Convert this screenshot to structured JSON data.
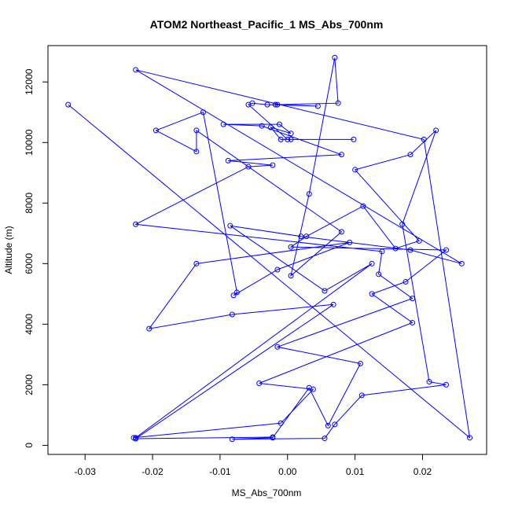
{
  "chart_data": {
    "type": "scatter",
    "title": "ATOM2 Northeast_Pacific_1 MS_Abs_700nm",
    "xlabel": "MS_Abs_700nm",
    "ylabel": "Altitude (m)",
    "xlim": [
      -0.0355,
      0.0295
    ],
    "ylim": [
      -300,
      13200
    ],
    "xticks": [
      -0.03,
      -0.02,
      -0.01,
      0.0,
      0.01,
      0.02
    ],
    "xtick_labels": [
      "-0.03",
      "-0.02",
      "-0.01",
      "0.00",
      "0.01",
      "0.02"
    ],
    "yticks": [
      0,
      2000,
      4000,
      6000,
      8000,
      10000,
      12000
    ],
    "ytick_labels": [
      "0",
      "2000",
      "4000",
      "6000",
      "8000",
      "10000",
      "12000"
    ],
    "grid": false,
    "line_color": "#0000ff",
    "marker": "open-circle",
    "connected": true,
    "x": [
      -0.0022,
      -0.0225,
      0.0068,
      -0.0082,
      -0.0205,
      -0.0135,
      0.0092,
      -0.0015,
      -0.008,
      -0.0075,
      -0.0125,
      -0.0195,
      -0.0135,
      -0.0135,
      0.008,
      0.0005,
      0.0032,
      0.007,
      0.0075,
      -0.0015,
      -0.0018,
      0.0045,
      -0.003,
      -0.0052,
      -0.0058,
      0.0,
      0.0098,
      0.0005,
      -0.001,
      -0.0025,
      0.0005,
      -0.0012,
      -0.0095,
      -0.0038,
      0.008,
      -0.0088,
      -0.0022,
      -0.0058,
      -0.0225,
      0.014,
      0.0135,
      0.0185,
      -0.0015,
      0.0108,
      0.006,
      0.0032,
      -0.0022,
      -0.0082,
      0.0055,
      0.007,
      0.011,
      0.0235,
      0.021,
      0.017,
      0.022,
      0.0182,
      0.01,
      0.0195,
      0.016,
      0.0112,
      0.0028,
      0.0005,
      0.0235,
      0.0175,
      0.0125,
      0.0185,
      -0.0042,
      0.0038,
      -0.001,
      -0.0228,
      -0.0225,
      0.0125,
      0.0055,
      -0.0085,
      0.002,
      0.0182,
      0.0258,
      -0.0225,
      0.0202,
      0.027,
      -0.0325
    ],
    "y": [
      270,
      220,
      4650,
      4320,
      3850,
      6000,
      6700,
      5800,
      4950,
      5050,
      11000,
      10400,
      9700,
      10400,
      7050,
      5600,
      8300,
      12800,
      11300,
      11250,
      11250,
      11200,
      11250,
      11300,
      11250,
      10100,
      10100,
      10100,
      10100,
      10500,
      10300,
      10600,
      10600,
      10550,
      9600,
      9400,
      9250,
      9200,
      7300,
      6400,
      5650,
      4850,
      3250,
      2700,
      650,
      1900,
      250,
      200,
      230,
      690,
      1650,
      2000,
      2100,
      7300,
      10400,
      9600,
      9100,
      6750,
      6500,
      7900,
      6900,
      6550,
      6450,
      5400,
      5000,
      4050,
      2050,
      1850,
      730,
      250,
      250,
      6000,
      5100,
      7250,
      6900,
      6450,
      6000,
      12400,
      10100,
      250,
      11250
    ]
  }
}
